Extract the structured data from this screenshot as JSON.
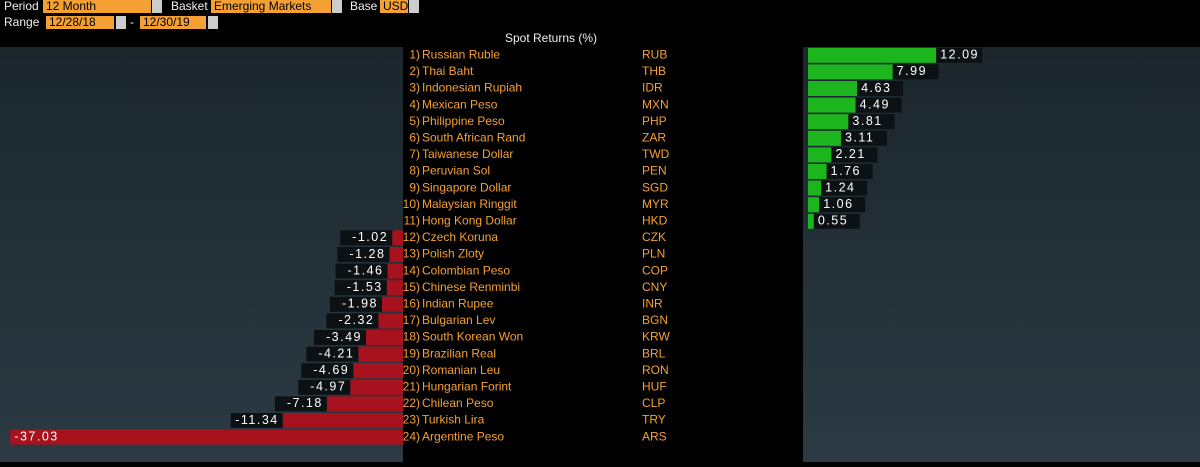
{
  "header": {
    "period_label": "Period",
    "period": "12 Month",
    "basket_label": "Basket",
    "basket": "Emerging Markets",
    "base_label": "Base",
    "base": "USD",
    "range_label": "Range",
    "range_start": "12/28/18",
    "range_sep": "-",
    "range_end": "12/30/19"
  },
  "chart_data": {
    "type": "bar",
    "orientation": "horizontal",
    "title": "Spot Returns (%)",
    "ranks": [
      "1)",
      "2)",
      "3)",
      "4)",
      "5)",
      "6)",
      "7)",
      "8)",
      "9)",
      "10)",
      "11)",
      "12)",
      "13)",
      "14)",
      "15)",
      "16)",
      "17)",
      "18)",
      "19)",
      "20)",
      "21)",
      "22)",
      "23)",
      "24)"
    ],
    "categories": [
      "Russian Ruble",
      "Thai Baht",
      "Indonesian Rupiah",
      "Mexican Peso",
      "Philippine Peso",
      "South African Rand",
      "Taiwanese Dollar",
      "Peruvian Sol",
      "Singapore Dollar",
      "Malaysian Ringgit",
      "Hong Kong Dollar",
      "Czech Koruna",
      "Polish Zloty",
      "Colombian Peso",
      "Chinese Renminbi",
      "Indian Rupee",
      "Bulgarian Lev",
      "South Korean Won",
      "Brazilian Real",
      "Romanian Leu",
      "Hungarian Forint",
      "Chilean Peso",
      "Turkish Lira",
      "Argentine Peso"
    ],
    "codes": [
      "RUB",
      "THB",
      "IDR",
      "MXN",
      "PHP",
      "ZAR",
      "TWD",
      "PEN",
      "SGD",
      "MYR",
      "HKD",
      "CZK",
      "PLN",
      "COP",
      "CNY",
      "INR",
      "BGN",
      "KRW",
      "BRL",
      "RON",
      "HUF",
      "CLP",
      "TRY",
      "ARS"
    ],
    "values": [
      12.09,
      7.99,
      4.63,
      4.49,
      3.81,
      3.11,
      2.21,
      1.76,
      1.24,
      1.06,
      0.55,
      -1.02,
      -1.28,
      -1.46,
      -1.53,
      -1.98,
      -2.32,
      -3.49,
      -4.21,
      -4.69,
      -4.97,
      -7.18,
      -11.34,
      -37.03
    ],
    "positive_color": "#1db51d",
    "negative_color": "#a8121e",
    "xlim": [
      -38,
      37
    ]
  }
}
